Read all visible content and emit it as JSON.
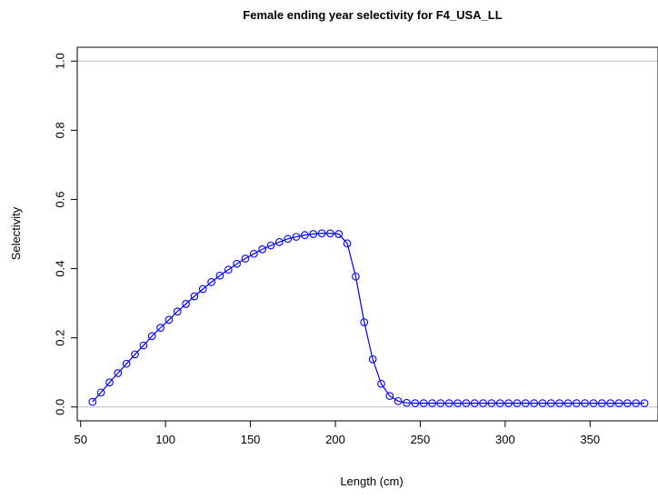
{
  "chart_data": {
    "type": "line",
    "title": "Female ending year selectivity for F4_USA_LL",
    "xlabel": "Length (cm)",
    "ylabel": "Selectivity",
    "xlim": [
      48,
      390
    ],
    "ylim": [
      -0.04,
      1.04
    ],
    "xticks": [
      50,
      100,
      150,
      200,
      250,
      300,
      350
    ],
    "yticks": [
      0.0,
      0.2,
      0.4,
      0.6,
      0.8,
      1.0
    ],
    "xtick_labels": [
      "50",
      "100",
      "150",
      "200",
      "250",
      "300",
      "350"
    ],
    "ytick_labels": [
      "0.0",
      "0.2",
      "0.4",
      "0.6",
      "0.8",
      "1.0"
    ],
    "reference_lines": [
      0,
      1
    ],
    "reference_line_color": "#c8c8c8",
    "series_color": "#0000ff",
    "marker": "open-circle",
    "x": [
      57,
      62,
      67,
      72,
      77,
      82,
      87,
      92,
      97,
      102,
      107,
      112,
      117,
      122,
      127,
      132,
      137,
      142,
      147,
      152,
      157,
      162,
      167,
      172,
      177,
      182,
      187,
      192,
      197,
      202,
      207,
      212,
      217,
      222,
      227,
      232,
      237,
      242,
      247,
      252,
      257,
      262,
      267,
      272,
      277,
      282,
      287,
      292,
      297,
      302,
      307,
      312,
      317,
      322,
      327,
      332,
      337,
      342,
      347,
      352,
      357,
      362,
      367,
      372,
      377,
      382
    ],
    "y": [
      0.015,
      0.042,
      0.071,
      0.098,
      0.125,
      0.152,
      0.178,
      0.205,
      0.229,
      0.252,
      0.276,
      0.298,
      0.32,
      0.341,
      0.361,
      0.38,
      0.397,
      0.414,
      0.429,
      0.443,
      0.456,
      0.467,
      0.477,
      0.486,
      0.492,
      0.497,
      0.5,
      0.502,
      0.502,
      0.5,
      0.473,
      0.377,
      0.245,
      0.138,
      0.067,
      0.032,
      0.017,
      0.012,
      0.011,
      0.011,
      0.011,
      0.011,
      0.011,
      0.011,
      0.011,
      0.011,
      0.011,
      0.011,
      0.011,
      0.011,
      0.011,
      0.011,
      0.011,
      0.011,
      0.011,
      0.011,
      0.011,
      0.011,
      0.011,
      0.011,
      0.011,
      0.011,
      0.011,
      0.011,
      0.011,
      0.011
    ]
  }
}
